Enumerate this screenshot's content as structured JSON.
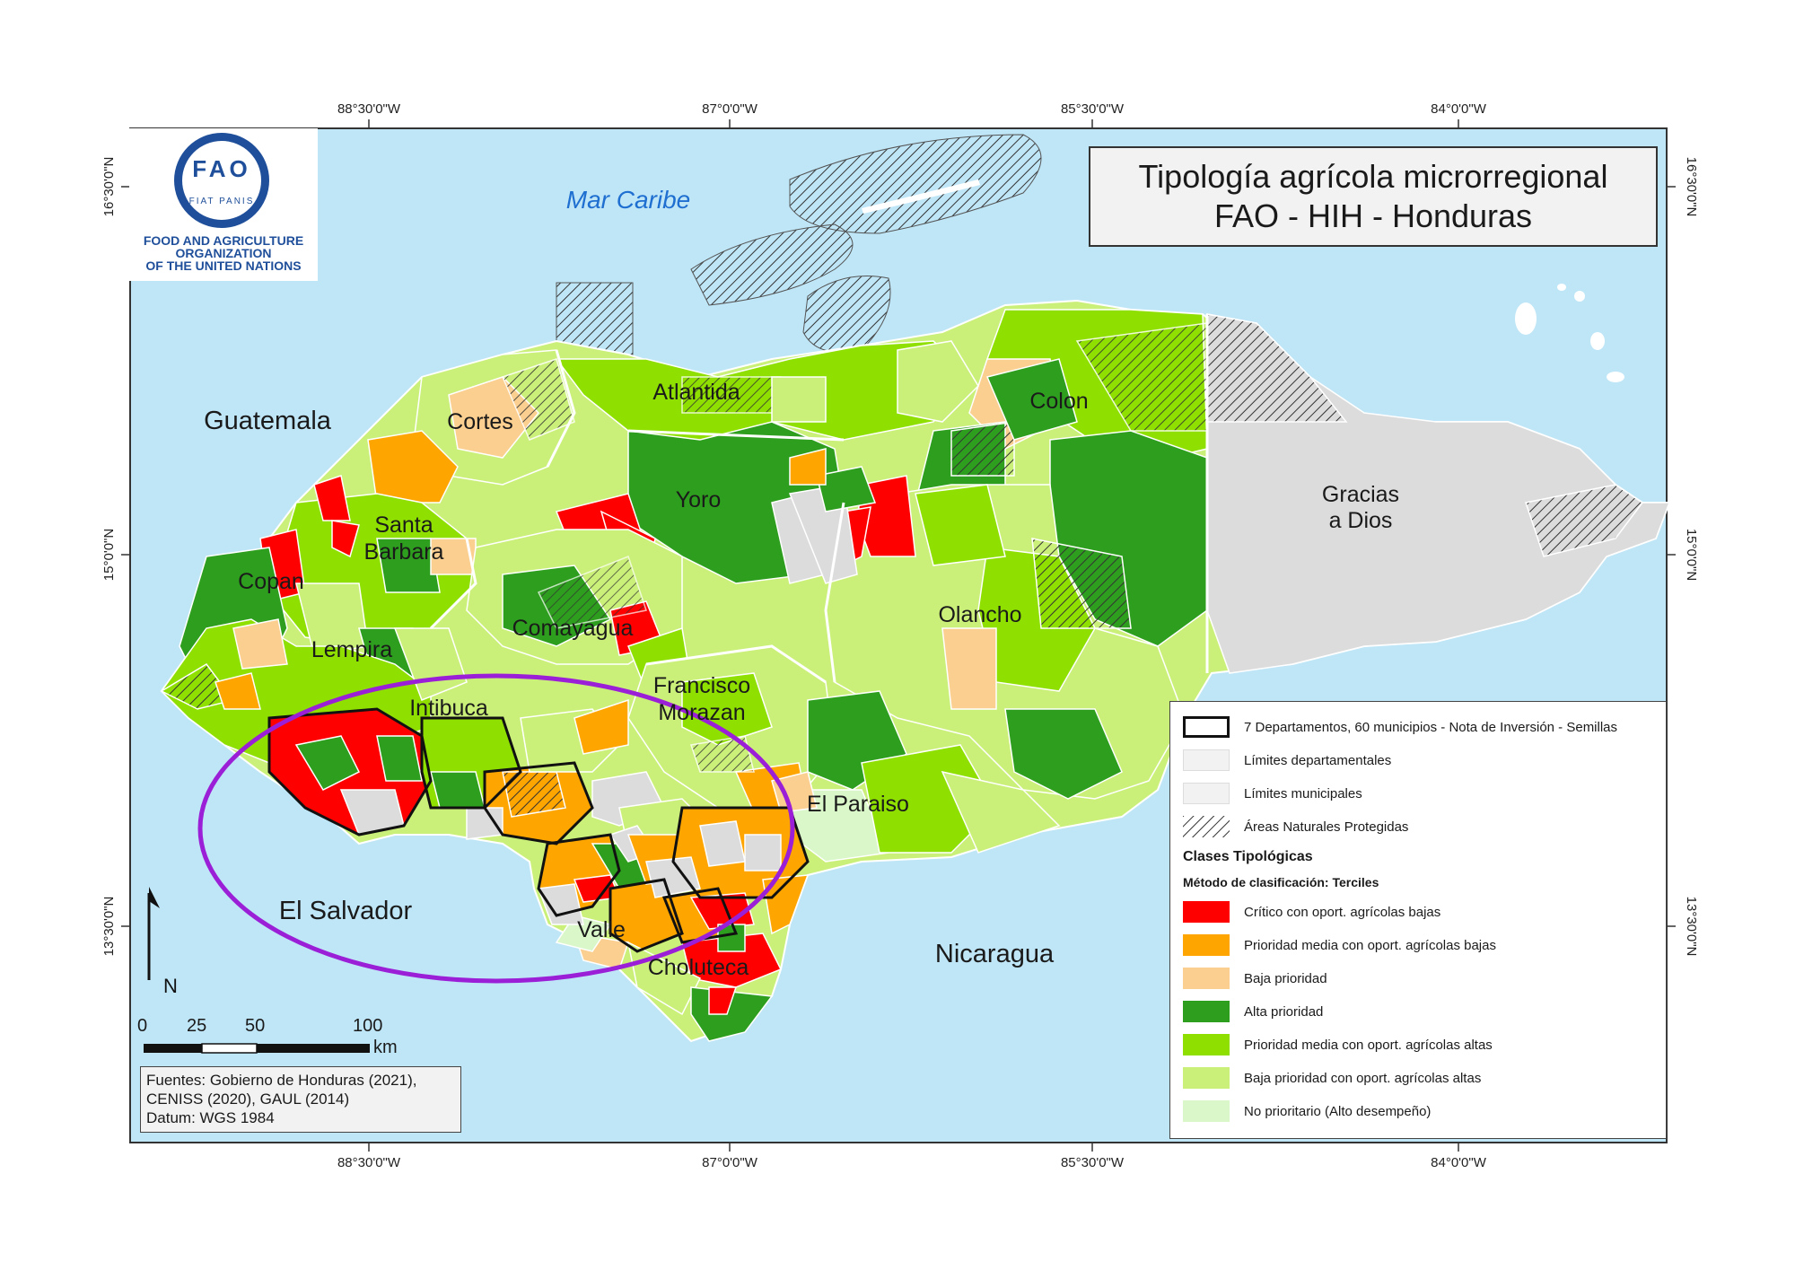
{
  "title": {
    "line1": "Tipología agrícola microrregional",
    "line2": "FAO - HIH - Honduras"
  },
  "logo": {
    "letters": "FAO",
    "motto": "FIAT PANIS",
    "org_line1": "FOOD AND AGRICULTURE",
    "org_line2": "ORGANIZATION",
    "org_line3": "OF THE UNITED NATIONS",
    "icon": "fao-wheat-emblem-icon"
  },
  "graticule": {
    "top": [
      "88°30'0\"W",
      "87°0'0\"W",
      "85°30'0\"W",
      "84°0'0\"W"
    ],
    "bottom": [
      "88°30'0\"W",
      "87°0'0\"W",
      "85°30'0\"W",
      "84°0'0\"W"
    ],
    "left": [
      "16°30'0\"N",
      "15°0'0\"N",
      "13°30'0\"N"
    ],
    "right": [
      "16°30'0\"N",
      "15°0'0\"N",
      "13°30'0\"N"
    ]
  },
  "places": {
    "sea": "Mar Caribe",
    "countries": [
      "Guatemala",
      "El Salvador",
      "Nicaragua"
    ],
    "departments": {
      "cortes": "Cortes",
      "atlantida": "Atlantida",
      "colon": "Colon",
      "yoro": "Yoro",
      "santa_barbara_1": "Santa",
      "santa_barbara_2": "Barbara",
      "copan": "Copan",
      "comayagua": "Comayagua",
      "olancho": "Olancho",
      "gracias_1": "Gracias",
      "gracias_2": "a Dios",
      "lempira": "Lempira",
      "intibuca": "Intibuca",
      "francisco_1": "Francisco",
      "francisco_2": "Morazan",
      "el_paraiso": "El Paraiso",
      "valle": "Valle",
      "choluteca": "Choluteca"
    }
  },
  "legend": {
    "items_boundaries": [
      "7 Departamentos, 60 municipios - Nota de Inversión - Semillas",
      "Límites departamentales",
      "Límites municipales",
      "Áreas Naturales Protegidas"
    ],
    "heading": "Clases Tipológicas",
    "method": "Método de clasificación: Terciles",
    "classes": [
      {
        "label": "Crítico con oport. agrícolas bajas",
        "color": "#ff0000"
      },
      {
        "label": "Prioridad media con oport. agrícolas bajas",
        "color": "#ffa500"
      },
      {
        "label": "Baja prioridad",
        "color": "#fbcf8f"
      },
      {
        "label": "Alta prioridad",
        "color": "#2e9e1e"
      },
      {
        "label": "Prioridad media con oport. agrícolas altas",
        "color": "#8fe000"
      },
      {
        "label": "Baja prioridad con oport. agrícolas altas",
        "color": "#cbf07a"
      },
      {
        "label": "No prioritario (Alto desempeño)",
        "color": "#d9f7c8"
      }
    ]
  },
  "north_arrow": "N",
  "scale_bar": {
    "ticks": [
      "0",
      "25",
      "50",
      "100"
    ],
    "unit": "km"
  },
  "sources": {
    "line1": "Fuentes: Gobierno de Honduras (2021),",
    "line2": "CENISS (2020), GAUL (2014)",
    "line3": "Datum: WGS 1984"
  },
  "colors": {
    "water": "#bfe6f7",
    "focus_ellipse": "#9b1fd6",
    "no_data": "#dcdcdc"
  }
}
